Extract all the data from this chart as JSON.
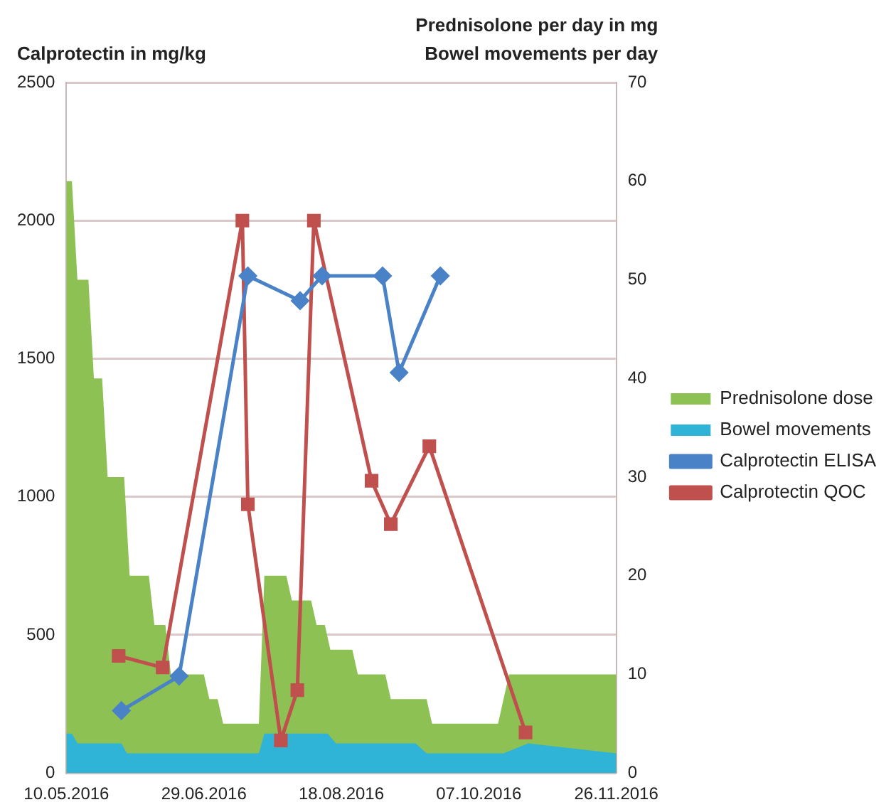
{
  "chart_data": {
    "type": "line",
    "ylabel": "Calprotectin in mg/kg",
    "y2label": "Prednisolone per day in mg\nBowel movements per day",
    "xlim": [
      "2016-05-10",
      "2016-11-26"
    ],
    "xticks": [
      {
        "value": "2016-05-10",
        "label": "10.05.2016"
      },
      {
        "value": "2016-06-29",
        "label": "29.06.2016"
      },
      {
        "value": "2016-08-18",
        "label": "18.08.2016"
      },
      {
        "value": "2016-10-07",
        "label": "07.10.2016"
      },
      {
        "value": "2016-11-26",
        "label": "26.11.2016"
      }
    ],
    "ylim": [
      0,
      2500
    ],
    "yticks": [
      0,
      500,
      1000,
      1500,
      2000,
      2500
    ],
    "y2lim": [
      0,
      70
    ],
    "y2ticks": [
      0,
      10,
      20,
      30,
      40,
      50,
      60,
      70
    ],
    "grid": "y",
    "legend": "right",
    "series": [
      {
        "name": "Prednisolone dose",
        "type": "area",
        "axis": "y2",
        "color": "#8dc153",
        "x": [
          "2016-05-10",
          "2016-05-12",
          "2016-05-14",
          "2016-05-18",
          "2016-05-20",
          "2016-05-23",
          "2016-05-25",
          "2016-05-31",
          "2016-06-02",
          "2016-06-09",
          "2016-06-11",
          "2016-06-15",
          "2016-06-17",
          "2016-06-29",
          "2016-07-01",
          "2016-07-04",
          "2016-07-06",
          "2016-07-19",
          "2016-07-21",
          "2016-07-29",
          "2016-07-31",
          "2016-08-07",
          "2016-08-09",
          "2016-08-12",
          "2016-08-14",
          "2016-08-22",
          "2016-08-24",
          "2016-09-03",
          "2016-09-05",
          "2016-09-18",
          "2016-09-20",
          "2016-10-14",
          "2016-10-18",
          "2016-11-26"
        ],
        "values": [
          60,
          60,
          50,
          50,
          40,
          40,
          30,
          30,
          20,
          20,
          15,
          15,
          10,
          10,
          7.5,
          7.5,
          5,
          5,
          20,
          20,
          17.5,
          17.5,
          15,
          15,
          12.5,
          12.5,
          10,
          10,
          7.5,
          7.5,
          5,
          5,
          10,
          10
        ]
      },
      {
        "name": "Bowel movements",
        "type": "area",
        "axis": "y2",
        "color": "#2fb3d7",
        "x": [
          "2016-05-10",
          "2016-05-12",
          "2016-05-14",
          "2016-05-30",
          "2016-06-01",
          "2016-07-19",
          "2016-07-21",
          "2016-08-13",
          "2016-08-16",
          "2016-09-14",
          "2016-09-18",
          "2016-10-16",
          "2016-10-25",
          "2016-11-26"
        ],
        "values": [
          4,
          4,
          3,
          3,
          2,
          2,
          4,
          4,
          3,
          3,
          2,
          2,
          3,
          2
        ]
      },
      {
        "name": "Calprotectin ELISA",
        "type": "line",
        "marker": "diamond",
        "color": "#4a82c8",
        "x": [
          "2016-05-30",
          "2016-06-20",
          "2016-07-15",
          "2016-08-03",
          "2016-08-11",
          "2016-09-02",
          "2016-09-08",
          "2016-09-23"
        ],
        "values": [
          226,
          351,
          1800,
          1710,
          1800,
          1800,
          1450,
          1800
        ]
      },
      {
        "name": "Calprotectin QOC",
        "type": "line",
        "marker": "square",
        "color": "#c0504d",
        "x": [
          "2016-05-29",
          "2016-06-14",
          "2016-07-13",
          "2016-07-15",
          "2016-07-27",
          "2016-08-02",
          "2016-08-08",
          "2016-08-29",
          "2016-09-05",
          "2016-09-19",
          "2016-10-24"
        ],
        "values": [
          424,
          382,
          2000,
          973,
          118,
          300,
          2000,
          1058,
          901,
          1183,
          147
        ]
      }
    ]
  }
}
